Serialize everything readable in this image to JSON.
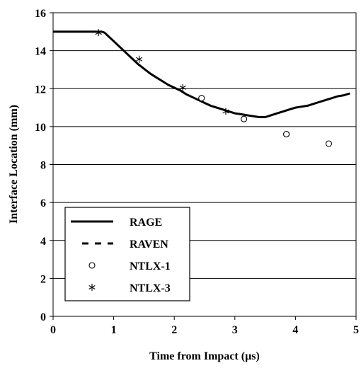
{
  "chart_data": {
    "type": "line",
    "xlabel": "Time from Impact (µs)",
    "ylabel": "Interface Location (mm)",
    "xlim": [
      0,
      5
    ],
    "ylim": [
      0,
      16
    ],
    "x_ticks": [
      "0",
      "1",
      "2",
      "3",
      "4",
      "5"
    ],
    "y_ticks": [
      "0",
      "2",
      "4",
      "6",
      "8",
      "10",
      "12",
      "14",
      "16"
    ],
    "grid": "horizontal",
    "legend_position": "lower-left",
    "series": [
      {
        "name": "RAGE",
        "style": "solid",
        "color": "#000000",
        "x": [
          0,
          0.3,
          0.6,
          0.8,
          0.85,
          0.9,
          1.0,
          1.1,
          1.2,
          1.3,
          1.4,
          1.5,
          1.6,
          1.7,
          1.8,
          1.9,
          2.0,
          2.1,
          2.2,
          2.3,
          2.4,
          2.5,
          2.6,
          2.7,
          2.8,
          2.9,
          3.0,
          3.1,
          3.2,
          3.3,
          3.4,
          3.5,
          3.6,
          3.7,
          3.8,
          3.9,
          4.0,
          4.1,
          4.2,
          4.3,
          4.4,
          4.5,
          4.6,
          4.7,
          4.8,
          4.9
        ],
        "y": [
          15.0,
          15.0,
          15.0,
          15.0,
          14.95,
          14.8,
          14.5,
          14.2,
          13.9,
          13.6,
          13.3,
          13.05,
          12.8,
          12.6,
          12.4,
          12.2,
          12.05,
          11.9,
          11.7,
          11.55,
          11.4,
          11.25,
          11.1,
          11.0,
          10.9,
          10.8,
          10.7,
          10.65,
          10.6,
          10.55,
          10.5,
          10.5,
          10.6,
          10.7,
          10.8,
          10.9,
          11.0,
          11.05,
          11.1,
          11.2,
          11.3,
          11.4,
          11.5,
          11.6,
          11.65,
          11.75
        ]
      },
      {
        "name": "RAVEN",
        "style": "dashed",
        "color": "#000000",
        "x": [
          0,
          0.3,
          0.6,
          0.8,
          0.85,
          0.9,
          1.0,
          1.1,
          1.2,
          1.3,
          1.4,
          1.5,
          1.6,
          1.7,
          1.8,
          1.9,
          2.0,
          2.1,
          2.2,
          2.3,
          2.4,
          2.5,
          2.6,
          2.7,
          2.8,
          2.9,
          3.0
        ],
        "y": [
          15.0,
          15.0,
          15.0,
          15.0,
          14.95,
          14.8,
          14.5,
          14.2,
          13.9,
          13.6,
          13.3,
          13.05,
          12.8,
          12.6,
          12.4,
          12.2,
          12.05,
          11.9,
          11.7,
          11.55,
          11.4,
          11.25,
          11.1,
          11.0,
          10.9,
          10.8,
          10.7
        ]
      },
      {
        "name": "NTLX-1",
        "style": "circle-markers",
        "color": "#000000",
        "x": [
          2.45,
          3.15,
          3.85,
          4.55
        ],
        "y": [
          11.5,
          10.4,
          9.6,
          9.1
        ]
      },
      {
        "name": "NTLX-3",
        "style": "star-markers",
        "color": "#000000",
        "x": [
          0.75,
          1.42,
          2.14,
          2.85
        ],
        "y": [
          14.95,
          13.55,
          12.05,
          10.8
        ]
      }
    ]
  }
}
